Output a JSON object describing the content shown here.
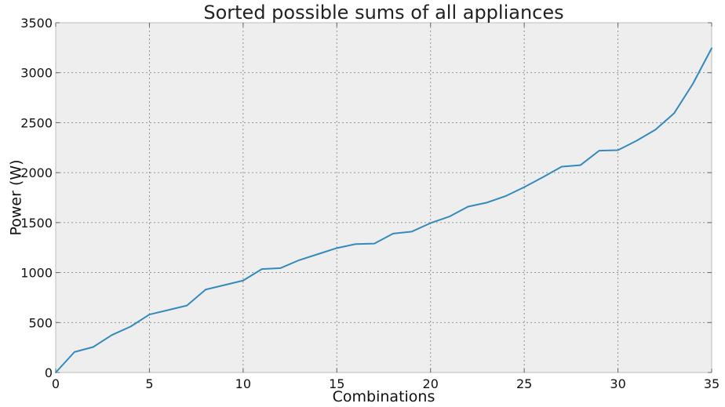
{
  "chart_data": {
    "type": "line",
    "title": "Sorted possible sums of all appliances",
    "xlabel": "Combinations",
    "ylabel": "Power (W)",
    "xlim": [
      0,
      35
    ],
    "ylim": [
      0,
      3500
    ],
    "xticks": [
      0,
      5,
      10,
      15,
      20,
      25,
      30,
      35
    ],
    "yticks": [
      0,
      500,
      1000,
      1500,
      2000,
      2500,
      3000,
      3500
    ],
    "grid": true,
    "series": [
      {
        "color": "#348abd",
        "x": [
          0,
          1,
          2,
          3,
          4,
          5,
          6,
          7,
          8,
          9,
          10,
          11,
          12,
          13,
          14,
          15,
          16,
          17,
          18,
          19,
          20,
          21,
          22,
          23,
          24,
          25,
          26,
          27,
          28,
          29,
          30,
          31,
          32,
          33,
          34,
          35
        ],
        "y": [
          0,
          205,
          255,
          375,
          460,
          580,
          625,
          670,
          830,
          875,
          920,
          1035,
          1045,
          1125,
          1185,
          1245,
          1285,
          1290,
          1390,
          1410,
          1495,
          1560,
          1660,
          1700,
          1765,
          1855,
          1955,
          2060,
          2075,
          2220,
          2225,
          2320,
          2430,
          2595,
          2890,
          3245
        ]
      }
    ]
  }
}
